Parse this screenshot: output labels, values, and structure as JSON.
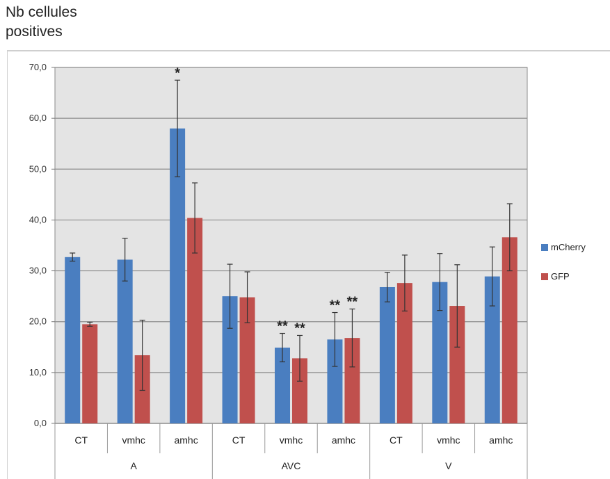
{
  "title": {
    "line1": "Nb cellules",
    "line2": "positives"
  },
  "colors": {
    "plot_background": "#e4e4e4",
    "gridline": "#8c8c8c",
    "mCherry": "#4a7ec0",
    "GFP": "#c0504d",
    "error_bar": "#333333"
  },
  "chart_data": {
    "type": "bar",
    "title": "",
    "ylabel": "Nb cellules positives",
    "xlabel": "",
    "ylim": [
      0,
      70
    ],
    "yticks": [
      "0,0",
      "10,0",
      "20,0",
      "30,0",
      "40,0",
      "50,0",
      "60,0",
      "70,0"
    ],
    "grid": true,
    "legend_position": "right",
    "groups": [
      {
        "label": "A",
        "categories": [
          "CT",
          "vmhc",
          "amhc"
        ]
      },
      {
        "label": "AVC",
        "categories": [
          "CT",
          "vmhc",
          "amhc"
        ]
      },
      {
        "label": "V",
        "categories": [
          "CT",
          "vmhc",
          "amhc"
        ]
      }
    ],
    "categories": [
      "CT",
      "vmhc",
      "amhc",
      "CT",
      "vmhc",
      "amhc",
      "CT",
      "vmhc",
      "amhc"
    ],
    "series": [
      {
        "name": "mCherry",
        "values": [
          32.7,
          32.2,
          58.0,
          25.0,
          14.9,
          16.5,
          26.8,
          27.8,
          28.9
        ],
        "errors": [
          0.8,
          4.2,
          9.5,
          6.3,
          2.8,
          5.3,
          2.9,
          5.6,
          5.8
        ],
        "annotations": [
          "",
          "",
          "*",
          "",
          "**",
          "**",
          "",
          "",
          ""
        ]
      },
      {
        "name": "GFP",
        "values": [
          19.5,
          13.4,
          40.4,
          24.8,
          12.8,
          16.8,
          27.6,
          23.1,
          36.6
        ],
        "errors": [
          0.4,
          6.9,
          6.9,
          5.0,
          4.5,
          5.7,
          5.5,
          8.1,
          6.6
        ],
        "annotations": [
          "",
          "",
          "",
          "",
          "**",
          "**",
          "",
          "",
          ""
        ]
      }
    ]
  }
}
